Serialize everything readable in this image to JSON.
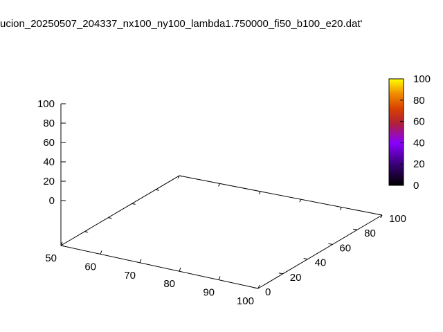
{
  "chart_data": {
    "type": "surface",
    "title": "ucion_20250507_204337_nx100_ny100_lambda1.750000_fi50_b100_e20.dat'",
    "xlabel": "",
    "ylabel": "",
    "zlabel": "",
    "x_range": [
      50,
      100
    ],
    "y_range": [
      0,
      100
    ],
    "z_range": [
      0,
      100
    ],
    "cb_range": [
      0,
      100
    ],
    "x_ticks": [
      "50",
      "60",
      "70",
      "80",
      "90",
      "100"
    ],
    "y_ticks": [
      "0",
      "20",
      "40",
      "60",
      "80",
      "100"
    ],
    "z_ticks": [
      "0",
      "20",
      "40",
      "60",
      "80",
      "100"
    ],
    "cb_ticks": [
      "0",
      "20",
      "40",
      "60",
      "80",
      "100"
    ],
    "palette": [
      "#000000",
      "#3a0078",
      "#8a00ff",
      "#b0203a",
      "#d84000",
      "#f08c00",
      "#ffff00"
    ],
    "series": [],
    "grid": false,
    "legend": "none"
  }
}
